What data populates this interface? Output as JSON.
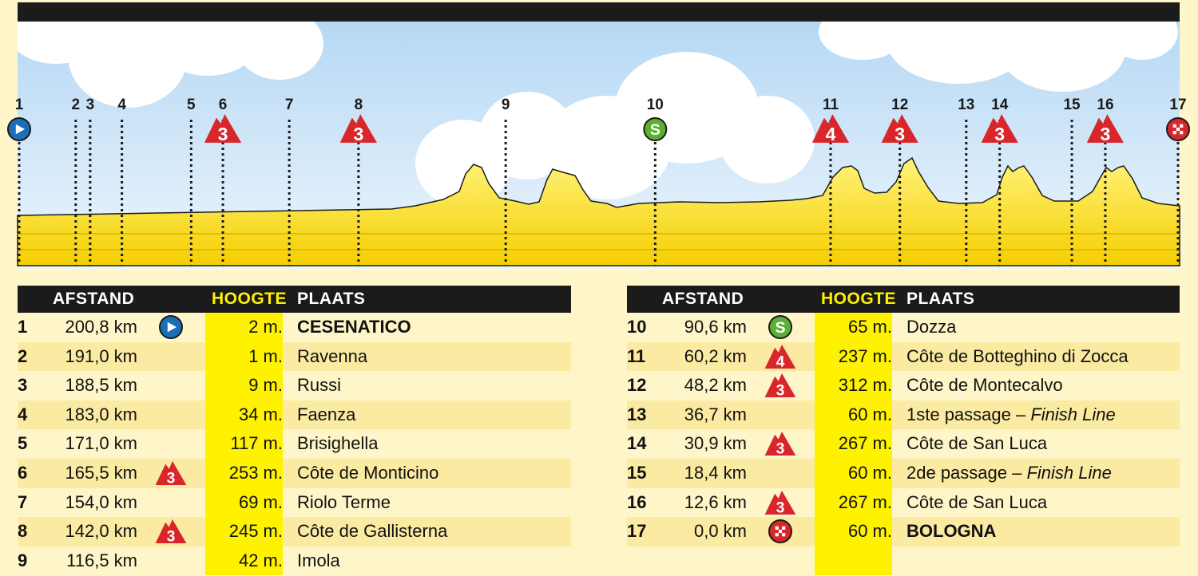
{
  "profile": {
    "markers": [
      {
        "n": "1",
        "km": 200.8,
        "icon": "start"
      },
      {
        "n": "2",
        "km": 191.0,
        "icon": ""
      },
      {
        "n": "3",
        "km": 188.5,
        "icon": ""
      },
      {
        "n": "4",
        "km": 183.0,
        "icon": ""
      },
      {
        "n": "5",
        "km": 171.0,
        "icon": ""
      },
      {
        "n": "6",
        "km": 165.5,
        "icon": "climb",
        "cat": "3"
      },
      {
        "n": "7",
        "km": 154.0,
        "icon": ""
      },
      {
        "n": "8",
        "km": 142.0,
        "icon": "climb",
        "cat": "3"
      },
      {
        "n": "9",
        "km": 116.5,
        "icon": ""
      },
      {
        "n": "10",
        "km": 90.6,
        "icon": "sprint"
      },
      {
        "n": "11",
        "km": 60.2,
        "icon": "climb",
        "cat": "4"
      },
      {
        "n": "12",
        "km": 48.2,
        "icon": "climb",
        "cat": "3"
      },
      {
        "n": "13",
        "km": 36.7,
        "icon": ""
      },
      {
        "n": "14",
        "km": 30.9,
        "icon": "climb",
        "cat": "3"
      },
      {
        "n": "15",
        "km": 18.4,
        "icon": ""
      },
      {
        "n": "16",
        "km": 12.6,
        "icon": "climb",
        "cat": "3"
      },
      {
        "n": "17",
        "km": 0.0,
        "icon": "finish"
      }
    ],
    "sprint_letter": "S",
    "colors": {
      "sky_top": "#b5d8f4",
      "sky_bottom": "#eef6fd",
      "fill": "#fbe03a",
      "fill_dark": "#f0c400",
      "climb": "#d9262b",
      "sprint": "#5ab031",
      "start": "#1a6fb8",
      "dark": "#1b1b1b"
    }
  },
  "table": {
    "headers": {
      "afstand": "AFSTAND",
      "hoogte": "HOOGTE",
      "plaats": "PLAATS"
    },
    "rows": [
      {
        "n": "1",
        "dist": "200,8 km",
        "icon": "start",
        "alt": "2 m.",
        "place": "CESENATICO",
        "bold": true
      },
      {
        "n": "2",
        "dist": "191,0 km",
        "icon": "",
        "alt": "1 m.",
        "place": "Ravenna"
      },
      {
        "n": "3",
        "dist": "188,5 km",
        "icon": "",
        "alt": "9 m.",
        "place": "Russi"
      },
      {
        "n": "4",
        "dist": "183,0 km",
        "icon": "",
        "alt": "34 m.",
        "place": "Faenza"
      },
      {
        "n": "5",
        "dist": "171,0 km",
        "icon": "",
        "alt": "117 m.",
        "place": "Brisighella"
      },
      {
        "n": "6",
        "dist": "165,5 km",
        "icon": "climb",
        "cat": "3",
        "alt": "253 m.",
        "place": "Côte de Monticino"
      },
      {
        "n": "7",
        "dist": "154,0 km",
        "icon": "",
        "alt": "69 m.",
        "place": "Riolo Terme"
      },
      {
        "n": "8",
        "dist": "142,0 km",
        "icon": "climb",
        "cat": "3",
        "alt": "245 m.",
        "place": "Côte de Gallisterna"
      },
      {
        "n": "9",
        "dist": "116,5 km",
        "icon": "",
        "alt": "42 m.",
        "place": "Imola"
      },
      {
        "n": "10",
        "dist": "90,6 km",
        "icon": "sprint",
        "alt": "65 m.",
        "place": "Dozza"
      },
      {
        "n": "11",
        "dist": "60,2 km",
        "icon": "climb",
        "cat": "4",
        "alt": "237 m.",
        "place": "Côte de Botteghino di Zocca"
      },
      {
        "n": "12",
        "dist": "48,2 km",
        "icon": "climb",
        "cat": "3",
        "alt": "312 m.",
        "place": "Côte de Montecalvo"
      },
      {
        "n": "13",
        "dist": "36,7 km",
        "icon": "",
        "alt": "60 m.",
        "place": "1ste passage – ",
        "place_em": "Finish Line"
      },
      {
        "n": "14",
        "dist": "30,9 km",
        "icon": "climb",
        "cat": "3",
        "alt": "267 m.",
        "place": "Côte de San Luca"
      },
      {
        "n": "15",
        "dist": "18,4 km",
        "icon": "",
        "alt": "60 m.",
        "place": "2de passage – ",
        "place_em": "Finish Line"
      },
      {
        "n": "16",
        "dist": "12,6 km",
        "icon": "climb",
        "cat": "3",
        "alt": "267 m.",
        "place": "Côte de San Luca"
      },
      {
        "n": "17",
        "dist": "0,0 km",
        "icon": "finish",
        "alt": "60 m.",
        "place": "BOLOGNA",
        "bold": true
      }
    ]
  }
}
